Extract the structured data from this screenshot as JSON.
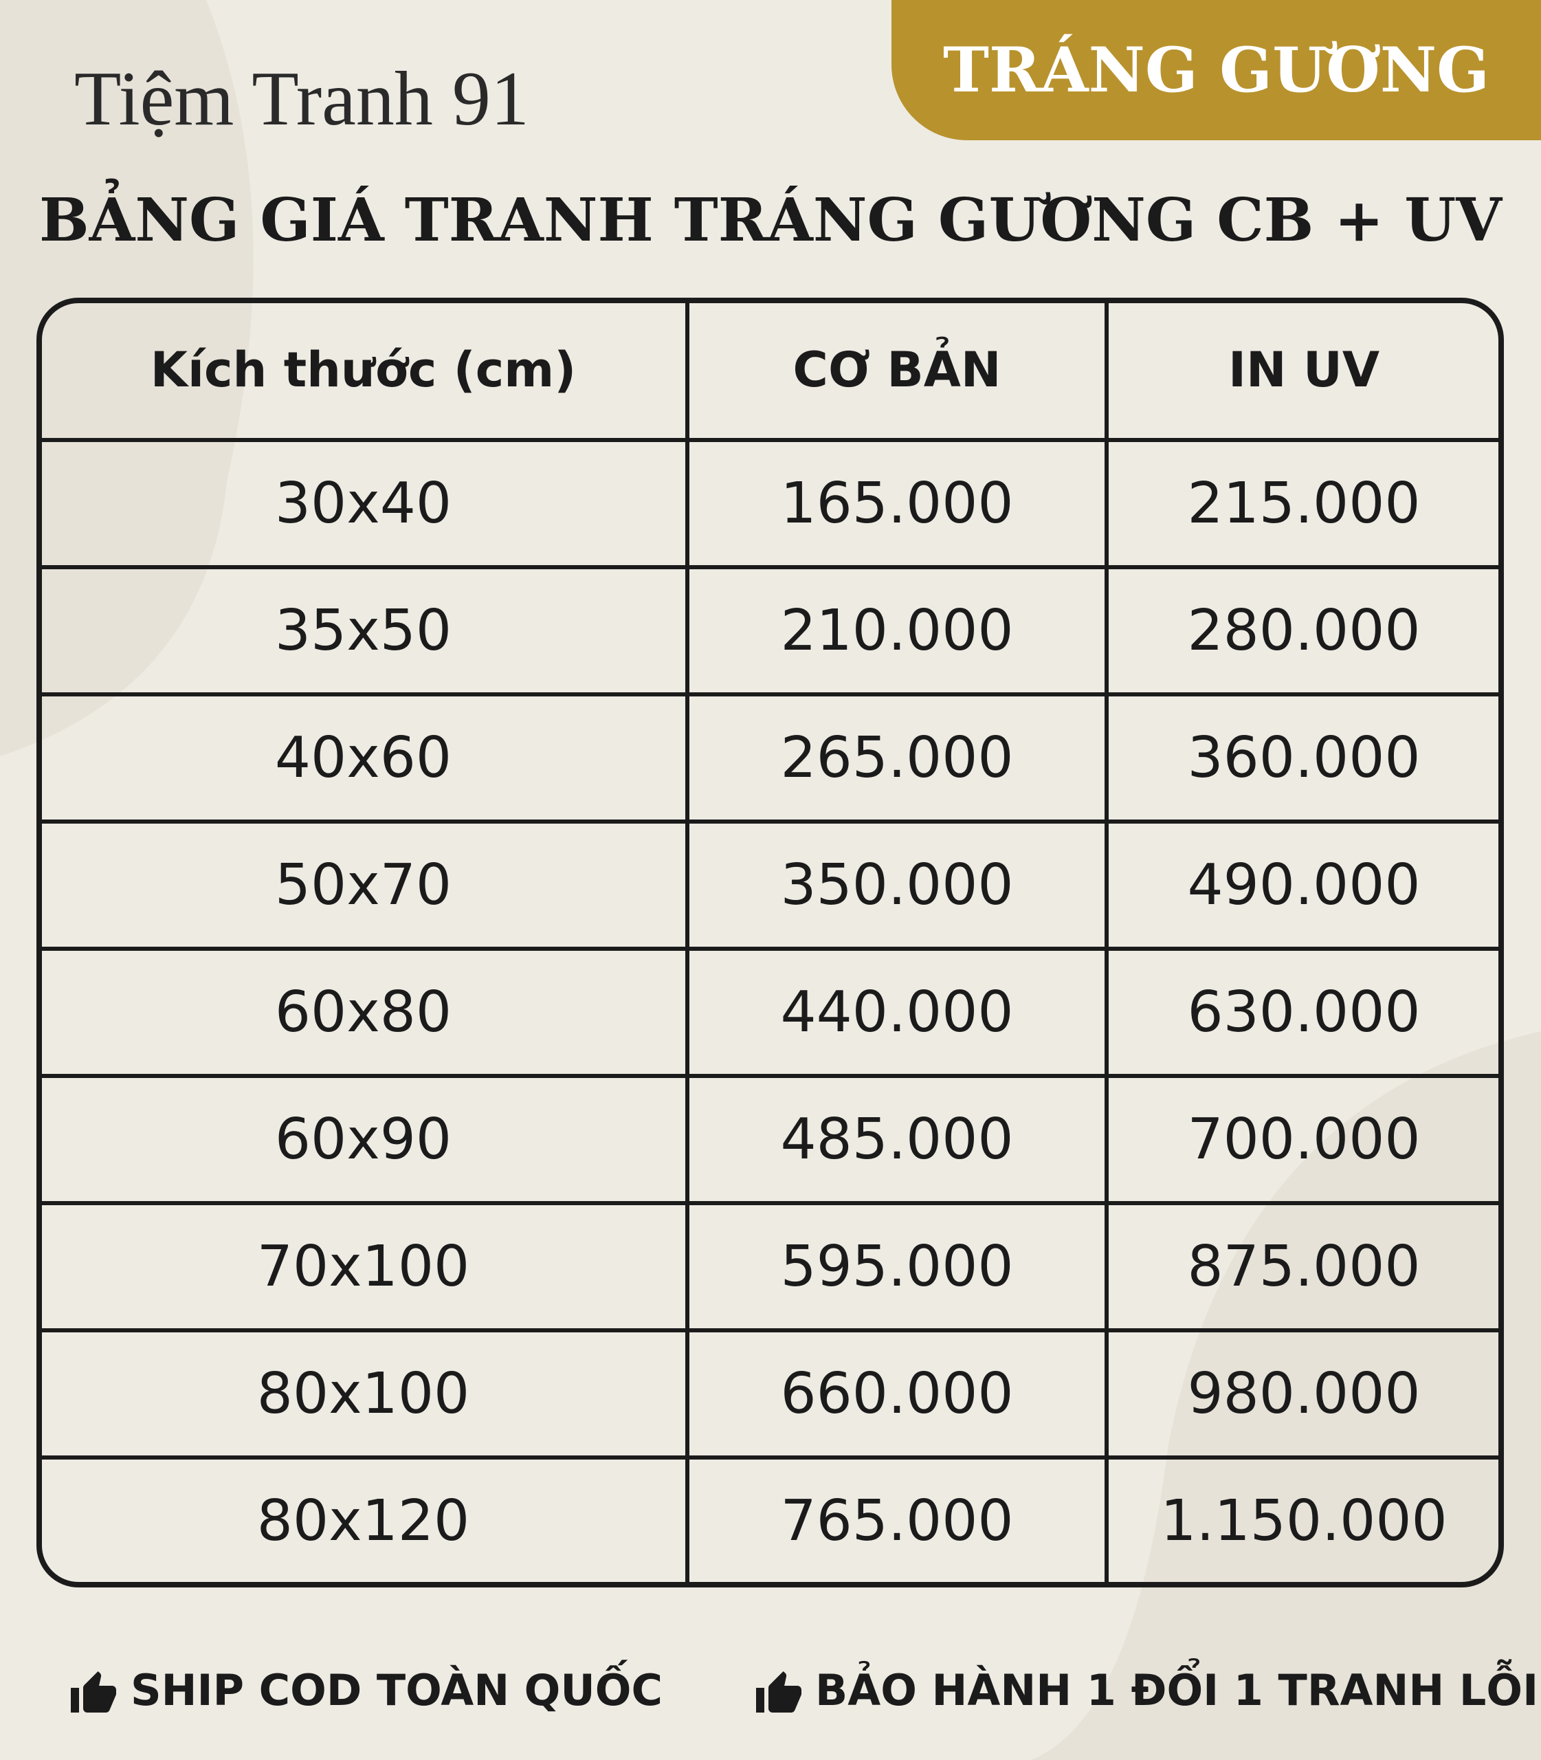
{
  "header": {
    "brand": "Tiệm Tranh 91",
    "badge": "TRÁNG GƯƠNG"
  },
  "title": "BẢNG GIÁ TRANH TRÁNG GƯƠNG CB + UV",
  "table": {
    "columns": [
      "Kích thước (cm)",
      "CƠ BẢN",
      "IN UV"
    ],
    "rows": [
      [
        "30x40",
        "165.000",
        "215.000"
      ],
      [
        "35x50",
        "210.000",
        "280.000"
      ],
      [
        "40x60",
        "265.000",
        "360.000"
      ],
      [
        "50x70",
        "350.000",
        "490.000"
      ],
      [
        "60x80",
        "440.000",
        "630.000"
      ],
      [
        "60x90",
        "485.000",
        "700.000"
      ],
      [
        "70x100",
        "595.000",
        "875.000"
      ],
      [
        "80x100",
        "660.000",
        "980.000"
      ],
      [
        "80x120",
        "765.000",
        "1.150.000"
      ]
    ]
  },
  "footer": {
    "items": [
      "SHIP COD TOÀN QUỐC",
      "BẢO HÀNH 1 ĐỔI 1 TRANH LỖI"
    ]
  }
}
